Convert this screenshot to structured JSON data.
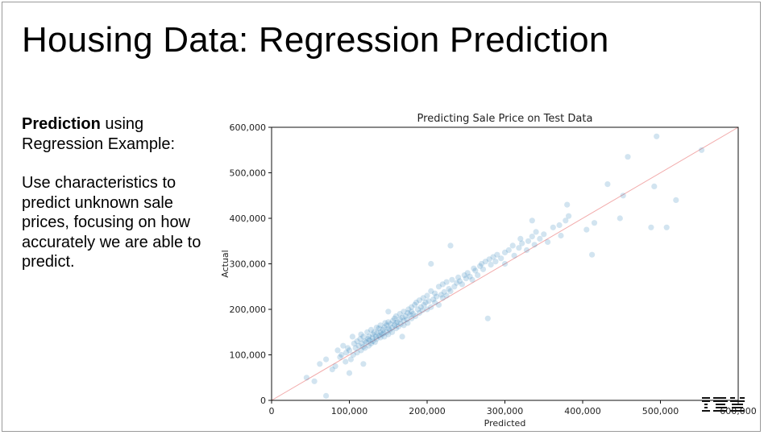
{
  "slide": {
    "title": "Housing Data: Regression Prediction",
    "para1_bold": "Prediction",
    "para1_rest": " using Regression Example:",
    "para2": "Use characteristics to predict unknown sale prices, focusing on how accurately we are able to predict.",
    "logo_text": "IBM"
  },
  "chart_data": {
    "type": "scatter",
    "title": "Predicting Sale Price on Test Data",
    "xlabel": "Predicted",
    "ylabel": "Actual",
    "xlim": [
      0,
      600000
    ],
    "ylim": [
      0,
      600000
    ],
    "xticks": [
      0,
      100000,
      200000,
      300000,
      400000,
      500000,
      600000
    ],
    "yticks": [
      0,
      100000,
      200000,
      300000,
      400000,
      500000,
      600000
    ],
    "xtick_labels": [
      "0",
      "100,000",
      "200,000",
      "300,000",
      "400,000",
      "500,000",
      "600,000"
    ],
    "ytick_labels": [
      "0",
      "100,000",
      "200,000",
      "300,000",
      "400,000",
      "500,000",
      "600,000"
    ],
    "grid": false,
    "point_color": "#1f77b4",
    "line_color": "#f2aaaa",
    "reference_line": {
      "x": [
        0,
        600000
      ],
      "y": [
        0,
        600000
      ]
    },
    "series": [
      {
        "x": [
          45000,
          55000,
          62000,
          70000,
          78000,
          82000,
          85000,
          88000,
          90000,
          92000,
          95000,
          96000,
          98000,
          100000,
          102000,
          104000,
          105000,
          106000,
          108000,
          110000,
          110000,
          112000,
          114000,
          115000,
          115000,
          116000,
          118000,
          118000,
          120000,
          120000,
          122000,
          123000,
          124000,
          125000,
          125000,
          126000,
          128000,
          128000,
          130000,
          130000,
          130000,
          132000,
          133000,
          134000,
          135000,
          135000,
          136000,
          138000,
          138000,
          140000,
          140000,
          140000,
          142000,
          143000,
          144000,
          145000,
          145000,
          146000,
          148000,
          148000,
          150000,
          150000,
          150000,
          152000,
          153000,
          155000,
          155000,
          156000,
          158000,
          158000,
          160000,
          160000,
          160000,
          162000,
          163000,
          165000,
          165000,
          166000,
          168000,
          170000,
          170000,
          170000,
          172000,
          174000,
          175000,
          175000,
          176000,
          178000,
          180000,
          180000,
          180000,
          182000,
          184000,
          185000,
          186000,
          188000,
          190000,
          190000,
          192000,
          194000,
          195000,
          196000,
          198000,
          200000,
          200000,
          202000,
          205000,
          205000,
          208000,
          210000,
          210000,
          212000,
          215000,
          215000,
          218000,
          220000,
          220000,
          222000,
          225000,
          225000,
          228000,
          230000,
          232000,
          235000,
          238000,
          240000,
          242000,
          245000,
          248000,
          250000,
          252000,
          255000,
          258000,
          260000,
          262000,
          265000,
          268000,
          270000,
          272000,
          275000,
          280000,
          282000,
          285000,
          288000,
          290000,
          295000,
          300000,
          300000,
          305000,
          310000,
          312000,
          318000,
          322000,
          328000,
          330000,
          335000,
          338000,
          340000,
          345000,
          350000,
          355000,
          362000,
          370000,
          372000,
          378000,
          382000,
          405000,
          412000,
          415000,
          432000,
          448000,
          452000,
          458000,
          488000,
          492000,
          495000,
          508000,
          520000,
          553000,
          70000,
          100000,
          118000,
          150000,
          168000,
          205000,
          230000,
          278000,
          320000,
          335000,
          380000
        ],
        "y": [
          50000,
          42000,
          80000,
          90000,
          68000,
          75000,
          110000,
          95000,
          100000,
          120000,
          85000,
          105000,
          115000,
          110000,
          90000,
          140000,
          100000,
          125000,
          115000,
          105000,
          130000,
          120000,
          135000,
          110000,
          145000,
          125000,
          118000,
          140000,
          130000,
          115000,
          128000,
          150000,
          135000,
          120000,
          140000,
          132000,
          125000,
          155000,
          138000,
          130000,
          145000,
          150000,
          128000,
          140000,
          160000,
          135000,
          148000,
          142000,
          158000,
          150000,
          138000,
          165000,
          145000,
          155000,
          148000,
          160000,
          140000,
          170000,
          150000,
          165000,
          158000,
          145000,
          172000,
          155000,
          168000,
          160000,
          150000,
          175000,
          165000,
          180000,
          170000,
          158000,
          185000,
          172000,
          162000,
          178000,
          190000,
          168000,
          182000,
          175000,
          195000,
          165000,
          185000,
          178000,
          192000,
          170000,
          200000,
          188000,
          180000,
          205000,
          195000,
          190000,
          210000,
          185000,
          215000,
          200000,
          192000,
          220000,
          205000,
          198000,
          225000,
          210000,
          215000,
          200000,
          230000,
          218000,
          205000,
          240000,
          222000,
          215000,
          235000,
          228000,
          210000,
          250000,
          232000,
          225000,
          255000,
          238000,
          230000,
          260000,
          245000,
          240000,
          265000,
          250000,
          258000,
          270000,
          262000,
          255000,
          275000,
          268000,
          280000,
          272000,
          265000,
          290000,
          285000,
          275000,
          295000,
          300000,
          288000,
          305000,
          310000,
          298000,
          315000,
          305000,
          320000,
          312000,
          325000,
          300000,
          330000,
          340000,
          318000,
          335000,
          345000,
          330000,
          350000,
          360000,
          342000,
          370000,
          355000,
          365000,
          348000,
          380000,
          385000,
          362000,
          395000,
          405000,
          375000,
          320000,
          390000,
          475000,
          400000,
          450000,
          535000,
          380000,
          470000,
          580000,
          380000,
          440000,
          550000,
          10000,
          60000,
          80000,
          195000,
          140000,
          300000,
          340000,
          180000,
          355000,
          395000,
          430000
        ]
      }
    ]
  }
}
